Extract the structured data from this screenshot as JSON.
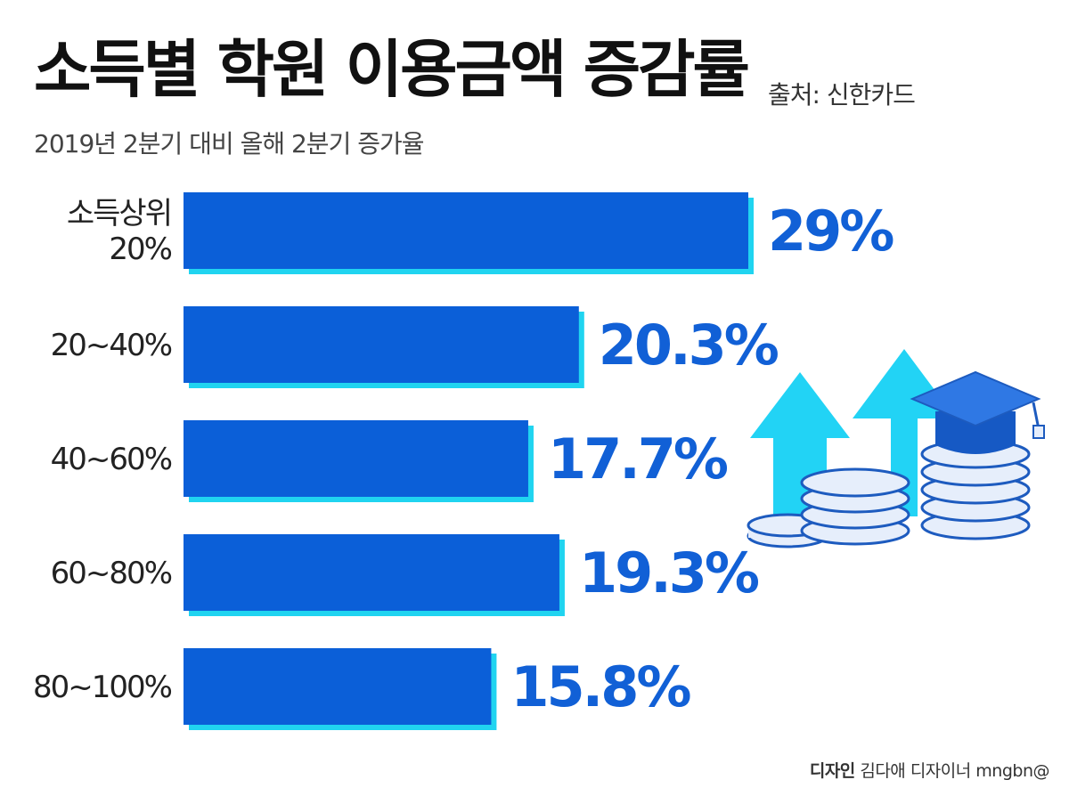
{
  "title": "소득별 학원 이용금액 증감률",
  "source": "출처: 신한카드",
  "subtitle": "2019년 2분기 대비 올해 2분기 증가율",
  "credit": {
    "label": "디자인",
    "name": "김다애 디자이너 mngbn@"
  },
  "colors": {
    "bar": "#0b5fd8",
    "shadow": "#20d4f0",
    "value": "#1160d6",
    "label": "#222222"
  },
  "chart_data": {
    "type": "bar",
    "orientation": "horizontal",
    "categories": [
      "소득상위\n20%",
      "20~40%",
      "40~60%",
      "60~80%",
      "80~100%"
    ],
    "values": [
      29,
      20.3,
      17.7,
      19.3,
      15.8
    ],
    "value_labels": [
      "29%",
      "20.3%",
      "17.7%",
      "19.3%",
      "15.8%"
    ],
    "title": "소득별 학원 이용금액 증감률",
    "xlabel": "",
    "ylabel": "",
    "xlim": [
      0,
      29
    ]
  }
}
